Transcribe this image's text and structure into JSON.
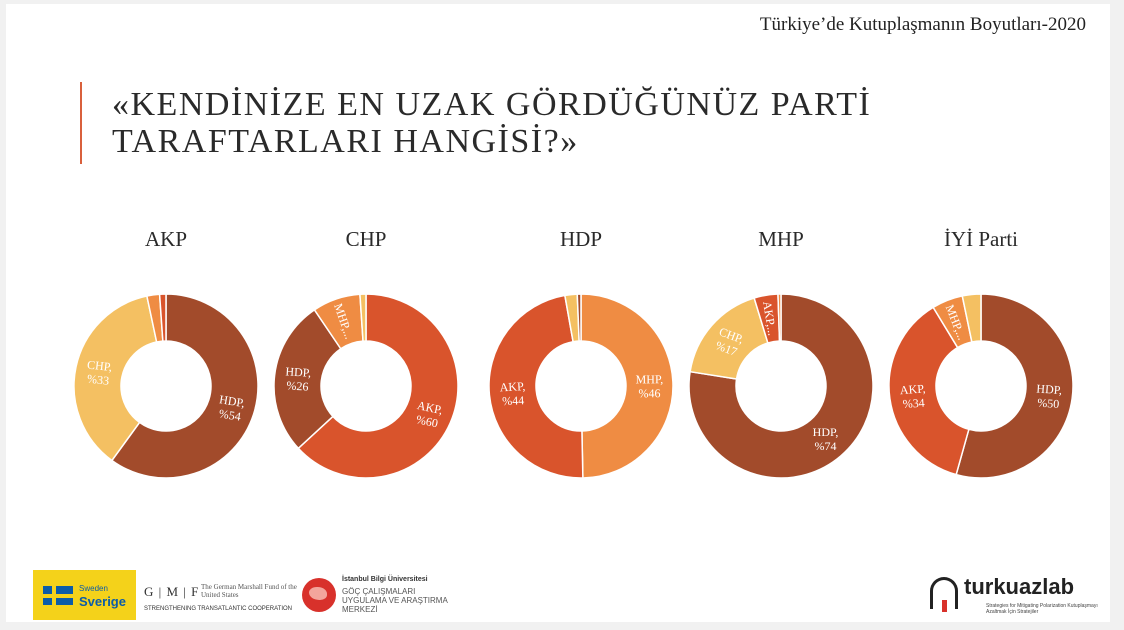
{
  "header": {
    "title": "Türkiye’de Kutuplaşmanın Boyutları-2020"
  },
  "question": {
    "line1": "«KENDİNİZE EN UZAK GÖRDÜĞÜNÜZ PARTİ",
    "line2": "TARAFTARLARI HANGİSİ?»"
  },
  "chart_data": [
    {
      "type": "pie",
      "title": "AKP",
      "slices": [
        {
          "label": "HDP, %54",
          "value": 54,
          "color": "#a24b2b"
        },
        {
          "label": "CHP, %33",
          "value": 33,
          "color": "#f4c062"
        },
        {
          "label": "",
          "value": 2,
          "color": "#ef8c43"
        },
        {
          "label": "",
          "value": 1,
          "color": "#d9542c"
        }
      ]
    },
    {
      "type": "pie",
      "title": "CHP",
      "slices": [
        {
          "label": "AKP, %60",
          "value": 60,
          "color": "#d9542c"
        },
        {
          "label": "HDP, %26",
          "value": 26,
          "color": "#a24b2b"
        },
        {
          "label": "MHP,...",
          "value": 8,
          "color": "#ef8c43"
        },
        {
          "label": "",
          "value": 1,
          "color": "#f4c062"
        }
      ]
    },
    {
      "type": "pie",
      "title": "HDP",
      "slices": [
        {
          "label": "MHP, %46",
          "value": 46,
          "color": "#ef8c43"
        },
        {
          "label": "AKP, %44",
          "value": 44,
          "color": "#d9542c"
        },
        {
          "label": "",
          "value": 2,
          "color": "#f4c062"
        },
        {
          "label": "",
          "value": 0.6,
          "color": "#a24b2b"
        }
      ]
    },
    {
      "type": "pie",
      "title": "MHP",
      "slices": [
        {
          "label": "HDP, %74",
          "value": 74,
          "color": "#a24b2b"
        },
        {
          "label": "CHP, %17",
          "value": 17,
          "color": "#f4c062"
        },
        {
          "label": "AKP,...",
          "value": 4,
          "color": "#d9542c"
        },
        {
          "label": "",
          "value": 0.5,
          "color": "#ef8c43"
        }
      ]
    },
    {
      "type": "pie",
      "title": "İYİ Parti",
      "slices": [
        {
          "label": "HDP, %50",
          "value": 50,
          "color": "#a24b2b"
        },
        {
          "label": "AKP, %34",
          "value": 34,
          "color": "#d9542c"
        },
        {
          "label": "MHP,...",
          "value": 5,
          "color": "#ef8c43"
        },
        {
          "label": "",
          "value": 3,
          "color": "#f4c062"
        }
      ]
    }
  ],
  "footer": {
    "sweden_small": "Sweden",
    "sweden_big": "Sverige",
    "gmf_mark": "G | M | F",
    "gmf_name": "The German Marshall Fund of the United States",
    "gmf_tagline": "STRENGTHENING TRANSATLANTIC COOPERATION",
    "bilgi_university": "İstanbul Bilgi Üniversitesi",
    "bilgi_center": "GÖÇ ÇALIŞMALARI UYGULAMA VE ARAŞTIRMA MERKEZİ",
    "turkuazlab_name": "turkuazlab",
    "turkuazlab_tagline": "Strategies for Mitigating Polarization Kutuplaşmayı Azaltmak İçin Stratejiler"
  }
}
